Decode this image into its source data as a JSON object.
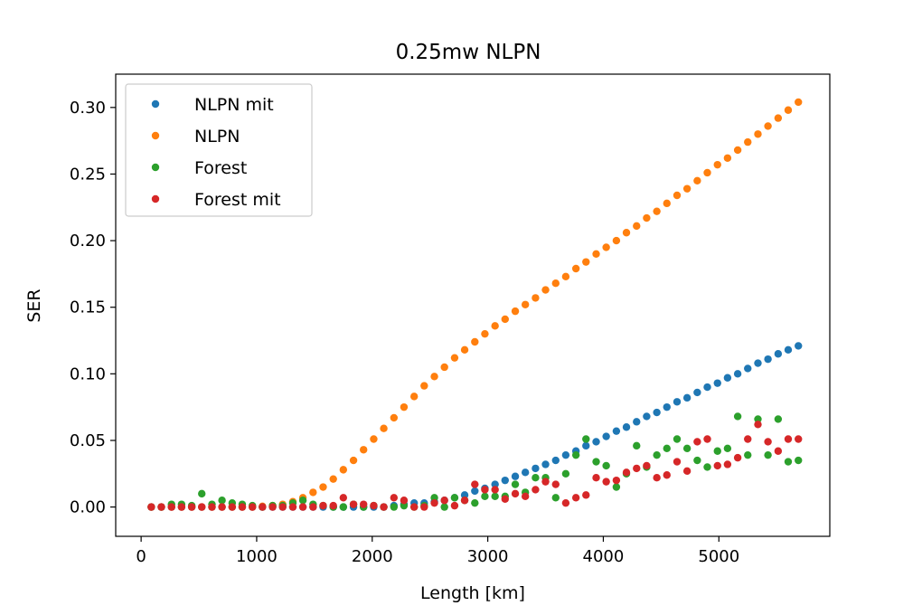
{
  "chart_data": {
    "type": "scatter",
    "title": "0.25mw NLPN",
    "xlabel": "Length [km]",
    "ylabel": "SER",
    "xlim": [
      -220,
      5960
    ],
    "ylim": [
      -0.022,
      0.325
    ],
    "x_ticks": [
      0,
      1000,
      2000,
      3000,
      4000,
      5000
    ],
    "x_tick_labels": [
      "0",
      "1000",
      "2000",
      "3000",
      "4000",
      "5000"
    ],
    "y_ticks": [
      0.0,
      0.05,
      0.1,
      0.15,
      0.2,
      0.25,
      0.3
    ],
    "y_tick_labels": [
      "0.00",
      "0.05",
      "0.10",
      "0.15",
      "0.20",
      "0.25",
      "0.30"
    ],
    "grid": false,
    "legend_position": "upper-left",
    "x": [
      88,
      175,
      263,
      350,
      438,
      525,
      613,
      700,
      788,
      875,
      963,
      1050,
      1138,
      1225,
      1313,
      1400,
      1488,
      1575,
      1663,
      1750,
      1838,
      1925,
      2013,
      2100,
      2188,
      2275,
      2363,
      2450,
      2538,
      2625,
      2713,
      2800,
      2888,
      2975,
      3063,
      3150,
      3238,
      3325,
      3413,
      3500,
      3588,
      3675,
      3763,
      3850,
      3938,
      4025,
      4113,
      4200,
      4288,
      4375,
      4463,
      4550,
      4638,
      4725,
      4813,
      4900,
      4988,
      5075,
      5163,
      5250,
      5338,
      5425,
      5513,
      5600,
      5688
    ],
    "series": [
      {
        "name": "NLPN mit",
        "color": "#1f77b4",
        "values": [
          0,
          0,
          0,
          0,
          0,
          0,
          0,
          0,
          0,
          0,
          0,
          0,
          0,
          0,
          0,
          0,
          0,
          0,
          0,
          0,
          0,
          0,
          0,
          0,
          0.001,
          0.002,
          0.003,
          0.003,
          0.004,
          0.005,
          0.007,
          0.009,
          0.012,
          0.014,
          0.017,
          0.02,
          0.023,
          0.026,
          0.029,
          0.032,
          0.035,
          0.039,
          0.042,
          0.046,
          0.049,
          0.053,
          0.057,
          0.06,
          0.064,
          0.068,
          0.071,
          0.075,
          0.079,
          0.082,
          0.086,
          0.09,
          0.093,
          0.097,
          0.1,
          0.104,
          0.108,
          0.111,
          0.115,
          0.118,
          0.121
        ]
      },
      {
        "name": "NLPN",
        "color": "#ff7f0e",
        "values": [
          0,
          0,
          0,
          0,
          0,
          0,
          0,
          0,
          0,
          0,
          0,
          0.0005,
          0.001,
          0.002,
          0.004,
          0.007,
          0.011,
          0.015,
          0.021,
          0.028,
          0.035,
          0.043,
          0.051,
          0.059,
          0.067,
          0.075,
          0.083,
          0.091,
          0.098,
          0.105,
          0.112,
          0.118,
          0.124,
          0.13,
          0.136,
          0.141,
          0.147,
          0.152,
          0.157,
          0.163,
          0.168,
          0.173,
          0.179,
          0.184,
          0.19,
          0.195,
          0.2,
          0.206,
          0.211,
          0.217,
          0.222,
          0.228,
          0.234,
          0.239,
          0.245,
          0.251,
          0.257,
          0.262,
          0.268,
          0.274,
          0.28,
          0.286,
          0.292,
          0.298,
          0.304
        ]
      },
      {
        "name": "Forest",
        "color": "#2ca02c",
        "values": [
          0,
          0,
          0.002,
          0.002,
          0.001,
          0.01,
          0.002,
          0.005,
          0.003,
          0.002,
          0.001,
          0,
          0.001,
          0.001,
          0.003,
          0.005,
          0.002,
          0.001,
          0,
          0,
          0.002,
          0,
          0.001,
          0,
          0,
          0.001,
          0,
          0.001,
          0.007,
          0,
          0.007,
          0.005,
          0.003,
          0.008,
          0.008,
          0.008,
          0.017,
          0.011,
          0.022,
          0.022,
          0.007,
          0.025,
          0.039,
          0.051,
          0.034,
          0.031,
          0.015,
          0.025,
          0.046,
          0.03,
          0.039,
          0.044,
          0.051,
          0.044,
          0.035,
          0.03,
          0.042,
          0.044,
          0.068,
          0.039,
          0.066,
          0.039,
          0.066,
          0.034,
          0.035
        ]
      },
      {
        "name": "Forest mit",
        "color": "#d62728",
        "values": [
          0,
          0,
          0,
          0,
          0,
          0,
          0,
          0,
          0,
          0,
          0,
          0,
          0,
          0,
          0,
          0,
          0,
          0.001,
          0.001,
          0.007,
          0.002,
          0.002,
          0.001,
          0,
          0.007,
          0.005,
          0,
          0,
          0.003,
          0.005,
          0.001,
          0.005,
          0.017,
          0.013,
          0.013,
          0.006,
          0.01,
          0.008,
          0.013,
          0.019,
          0.017,
          0.003,
          0.007,
          0.009,
          0.022,
          0.019,
          0.02,
          0.026,
          0.029,
          0.031,
          0.022,
          0.024,
          0.034,
          0.027,
          0.049,
          0.051,
          0.031,
          0.032,
          0.037,
          0.051,
          0.062,
          0.049,
          0.042,
          0.051,
          0.051
        ]
      }
    ]
  }
}
